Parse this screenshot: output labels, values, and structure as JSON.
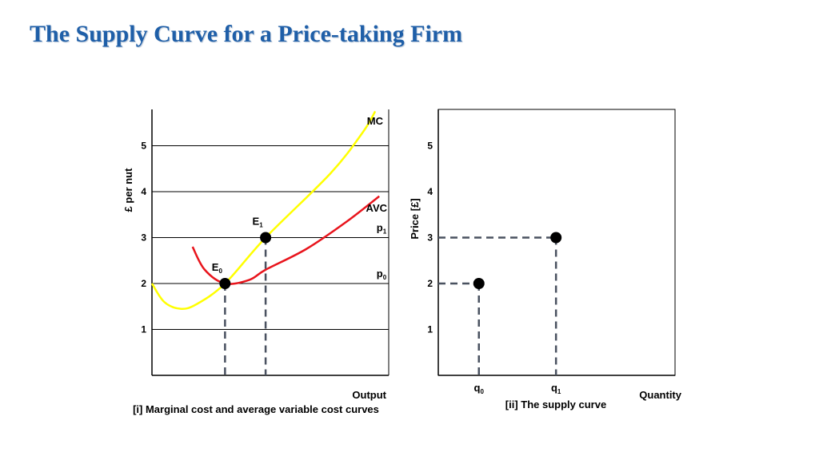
{
  "title": "The Supply Curve for a Price-taking Firm",
  "chart_data": [
    {
      "type": "line",
      "caption": "[i] Marginal cost and average variable cost curves",
      "xlabel": "Output",
      "ylabel": "£ per nut",
      "ylim": [
        0,
        5.9
      ],
      "yticks": [
        1,
        2,
        3,
        4,
        5
      ],
      "series": [
        {
          "name": "MC",
          "color": "#ffff00",
          "points": [
            [
              0,
              2.0
            ],
            [
              0.15,
              1.6
            ],
            [
              0.35,
              1.45
            ],
            [
              0.55,
              1.55
            ],
            [
              0.9,
              2.0
            ],
            [
              1.4,
              3.0
            ],
            [
              2.2,
              4.4
            ],
            [
              2.6,
              5.3
            ],
            [
              2.75,
              5.75
            ]
          ]
        },
        {
          "name": "AVC",
          "color": "#e8141c",
          "points": [
            [
              0.5,
              2.8
            ],
            [
              0.65,
              2.3
            ],
            [
              0.9,
              2.0
            ],
            [
              1.2,
              2.08
            ],
            [
              1.4,
              2.3
            ],
            [
              1.9,
              2.75
            ],
            [
              2.4,
              3.35
            ],
            [
              2.8,
              3.9
            ]
          ]
        }
      ],
      "points": [
        {
          "id": "E",
          "sub": "0",
          "x": 0.9,
          "y": 2
        },
        {
          "id": "E",
          "sub": "1",
          "x": 1.4,
          "y": 3
        }
      ],
      "price_labels": [
        {
          "id": "p",
          "sub": "0",
          "y": 2
        },
        {
          "id": "p",
          "sub": "1",
          "y": 3
        }
      ]
    },
    {
      "type": "scatter",
      "caption": "[ii] The supply curve",
      "xlabel": "Quantity",
      "ylabel": "Price [£]",
      "ylim": [
        0,
        5.9
      ],
      "yticks": [
        1,
        2,
        3,
        4,
        5
      ],
      "points": [
        {
          "label": "q",
          "sub": "0",
          "x": 0.5,
          "y": 2
        },
        {
          "label": "q",
          "sub": "1",
          "x": 1.45,
          "y": 3
        }
      ]
    }
  ]
}
